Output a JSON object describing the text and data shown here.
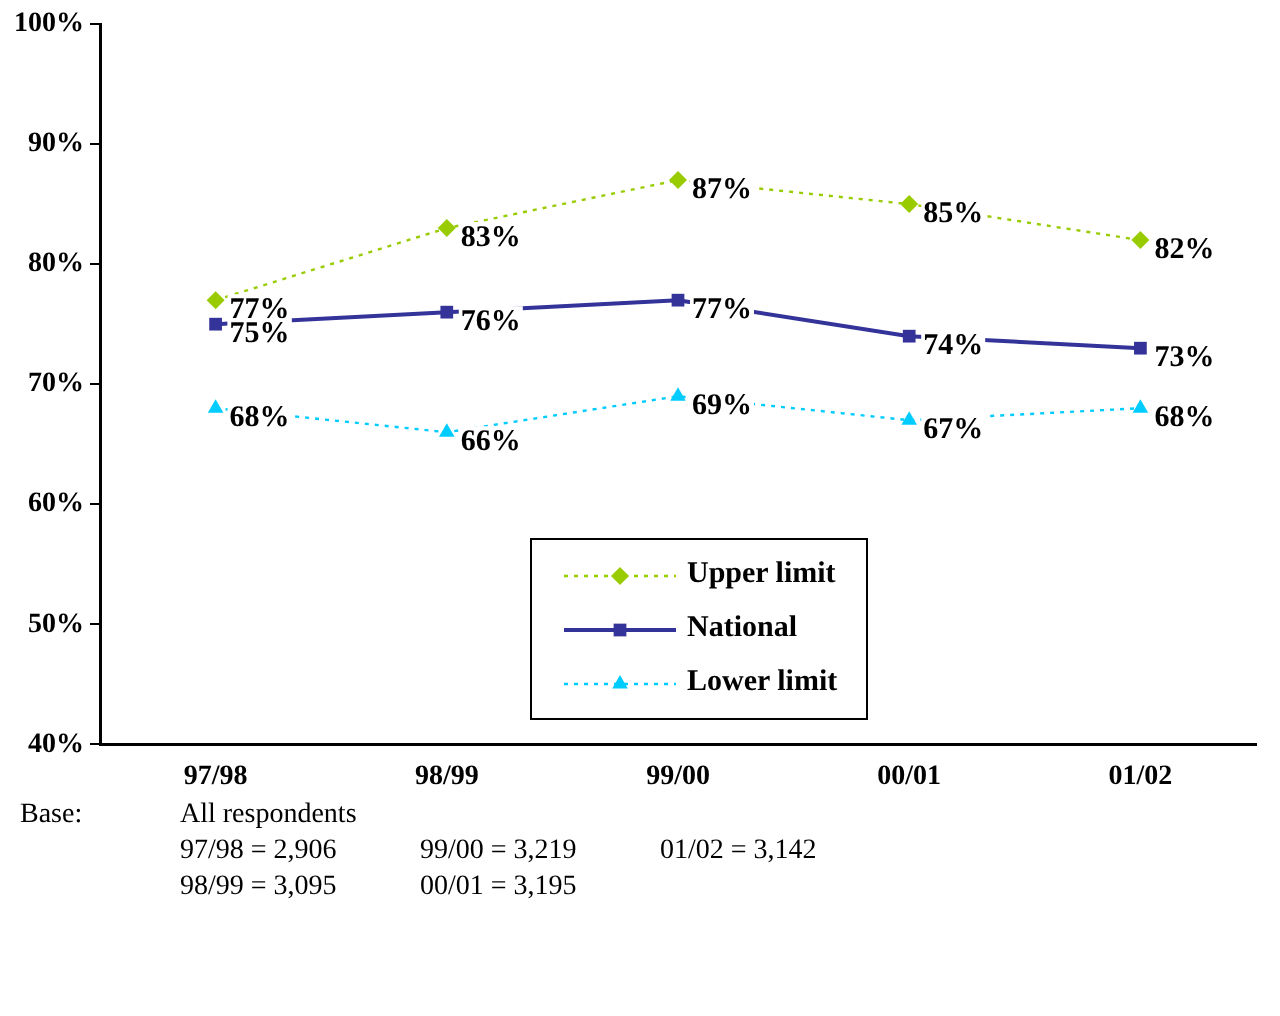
{
  "chart_data": {
    "type": "line",
    "categories": [
      "97/98",
      "98/99",
      "99/00",
      "00/01",
      "01/02"
    ],
    "series": [
      {
        "name": "Upper limit",
        "color": "#99cc00",
        "values": [
          77,
          83,
          87,
          85,
          82
        ],
        "marker": "diamond",
        "line_style": "dotted"
      },
      {
        "name": "National",
        "color": "#333399",
        "values": [
          75,
          76,
          77,
          74,
          73
        ],
        "marker": "square",
        "line_style": "solid"
      },
      {
        "name": "Lower limit",
        "color": "#00ccff",
        "values": [
          68,
          66,
          69,
          67,
          68
        ],
        "marker": "triangle",
        "line_style": "dotted"
      }
    ],
    "ylim": [
      40,
      100
    ],
    "yticks": [
      {
        "value": 40,
        "label": "40%"
      },
      {
        "value": 50,
        "label": "50%"
      },
      {
        "value": 60,
        "label": "60%"
      },
      {
        "value": 70,
        "label": "70%"
      },
      {
        "value": 80,
        "label": "80%"
      },
      {
        "value": 90,
        "label": "90%"
      },
      {
        "value": 100,
        "label": "100%"
      }
    ],
    "value_labels": [
      [
        "77%",
        "83%",
        "87%",
        "85%",
        "82%"
      ],
      [
        "75%",
        "76%",
        "77%",
        "74%",
        "73%"
      ],
      [
        "68%",
        "66%",
        "69%",
        "67%",
        "68%"
      ]
    ],
    "grid": false,
    "legend": "bottom",
    "annotations": [
      "Base:",
      "All respondents",
      "97/98 = 2,906",
      "99/00 = 3,219",
      "01/02 = 3,142",
      "98/99 = 3,095",
      "00/01 = 3,195"
    ]
  }
}
